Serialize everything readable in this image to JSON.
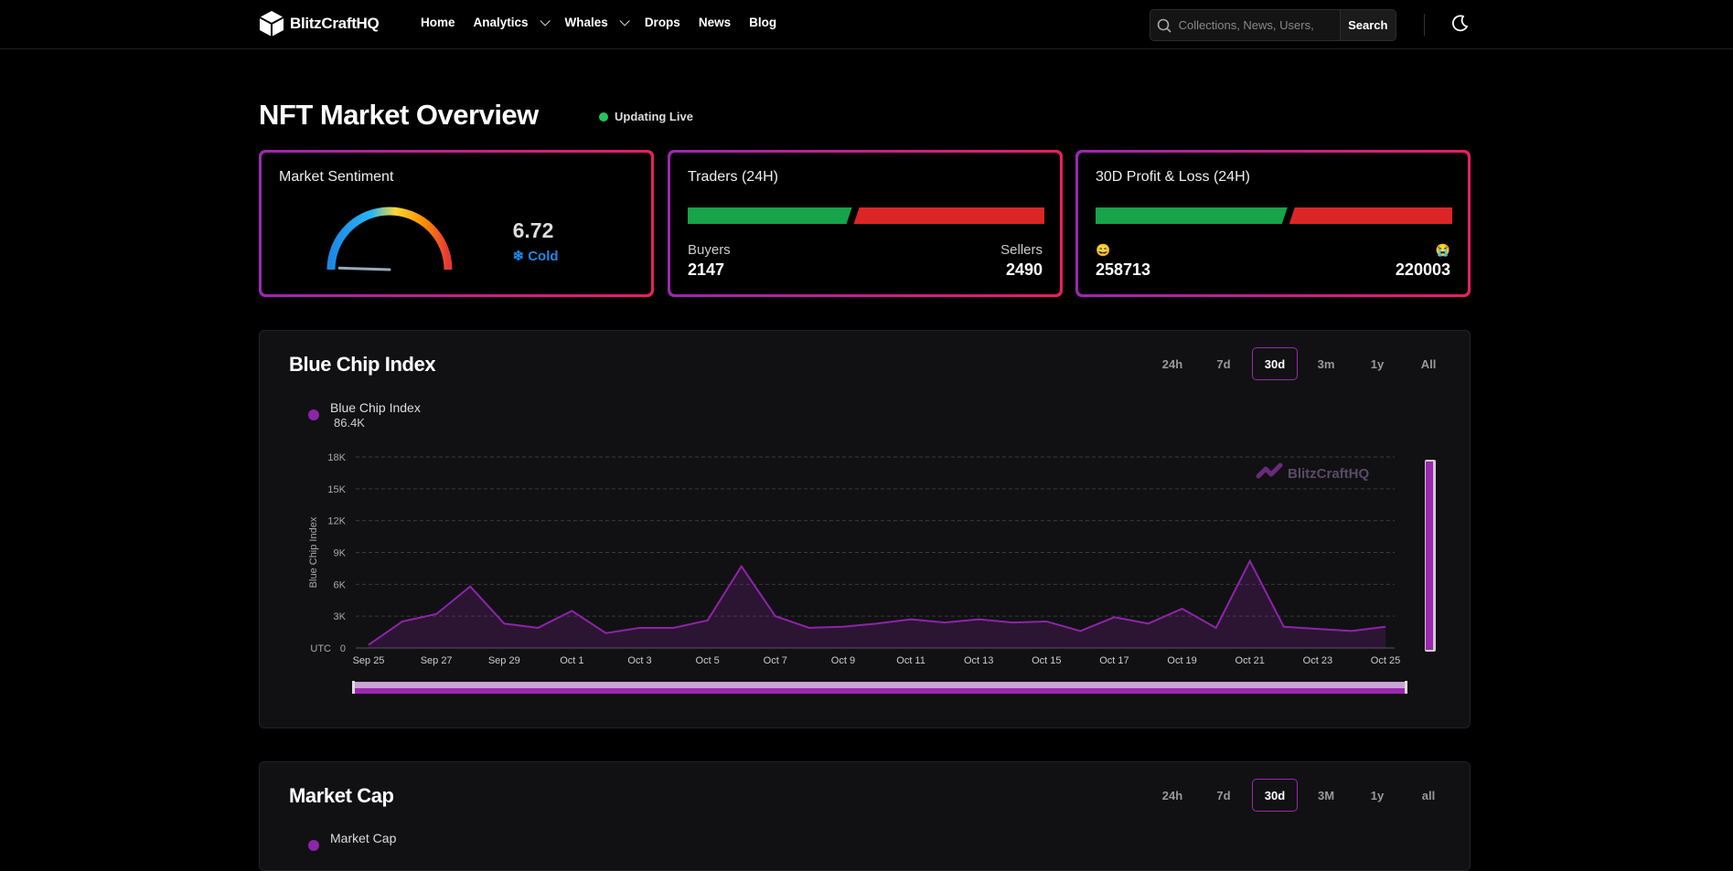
{
  "nav": {
    "brand": "BlitzCraftHQ",
    "links": [
      {
        "label": "Home"
      },
      {
        "label": "Analytics",
        "dropdown": true
      },
      {
        "label": "Whales",
        "dropdown": true
      },
      {
        "label": "Drops"
      },
      {
        "label": "News"
      },
      {
        "label": "Blog"
      }
    ],
    "search_placeholder": "Collections, News, Users,",
    "search_button": "Search",
    "theme_icon": "moon-icon"
  },
  "header": {
    "title": "NFT Market Overview",
    "live_status": "Updating Live"
  },
  "sentiment": {
    "title": "Market Sentiment",
    "value": "6.72",
    "label": "❄ Cold",
    "level": 6.72
  },
  "traders": {
    "title": "Traders (24H)",
    "buyers_label": "Buyers",
    "sellers_label": "Sellers",
    "buyers": "2147",
    "sellers": "2490"
  },
  "pnl": {
    "title": "30D Profit & Loss (24H)",
    "profit_emoji": "😄",
    "loss_emoji": "😭",
    "profit": "258713",
    "loss": "220003"
  },
  "colors": {
    "accent": "#9c27b0",
    "accent2": "#e91e63",
    "green": "#16a34a",
    "red": "#dc2626",
    "cold": "#1e88e5",
    "line": "#8e24aa"
  },
  "blue_chip": {
    "title": "Blue Chip Index",
    "ranges": [
      "24h",
      "7d",
      "30d",
      "3m",
      "1y",
      "All"
    ],
    "active_range": "30d",
    "legend_name": "Blue Chip Index",
    "legend_value": "86.4K",
    "watermark": "BlitzCraftHQ",
    "utc_label": "UTC"
  },
  "market_cap": {
    "title": "Market Cap",
    "ranges": [
      "24h",
      "7d",
      "30d",
      "3M",
      "1y",
      "all"
    ],
    "active_range": "30d",
    "legend_name": "Market Cap"
  },
  "chart_data": {
    "type": "area",
    "title": "Blue Chip Index",
    "ylabel": "Blue Chip Index",
    "xlabel": "",
    "ylim": [
      0,
      18000
    ],
    "y_ticks": [
      "0",
      "3K",
      "6K",
      "9K",
      "12K",
      "15K",
      "18K"
    ],
    "x_tick_labels": [
      "Sep 25",
      "Sep 27",
      "Sep 29",
      "Oct 1",
      "Oct 3",
      "Oct 5",
      "Oct 7",
      "Oct 9",
      "Oct 11",
      "Oct 13",
      "Oct 15",
      "Oct 17",
      "Oct 19",
      "Oct 21",
      "Oct 23",
      "Oct 25"
    ],
    "x": [
      "Sep 25",
      "Sep 26",
      "Sep 27",
      "Sep 28",
      "Sep 29",
      "Sep 30",
      "Oct 1",
      "Oct 2",
      "Oct 3",
      "Oct 4",
      "Oct 5",
      "Oct 6",
      "Oct 7",
      "Oct 8",
      "Oct 9",
      "Oct 10",
      "Oct 11",
      "Oct 12",
      "Oct 13",
      "Oct 14",
      "Oct 15",
      "Oct 16",
      "Oct 17",
      "Oct 18",
      "Oct 19",
      "Oct 20",
      "Oct 21",
      "Oct 22",
      "Oct 23",
      "Oct 24",
      "Oct 25"
    ],
    "series": [
      {
        "name": "Blue Chip Index",
        "values": [
          300,
          2500,
          3200,
          5800,
          2300,
          1900,
          3500,
          1400,
          1900,
          1900,
          2600,
          7700,
          3000,
          1900,
          2000,
          2300,
          2700,
          2400,
          2700,
          2400,
          2500,
          1600,
          2900,
          2300,
          3700,
          1900,
          8200,
          2000,
          1800,
          1600,
          2000
        ]
      }
    ],
    "grid": true,
    "legend": "top-left"
  }
}
